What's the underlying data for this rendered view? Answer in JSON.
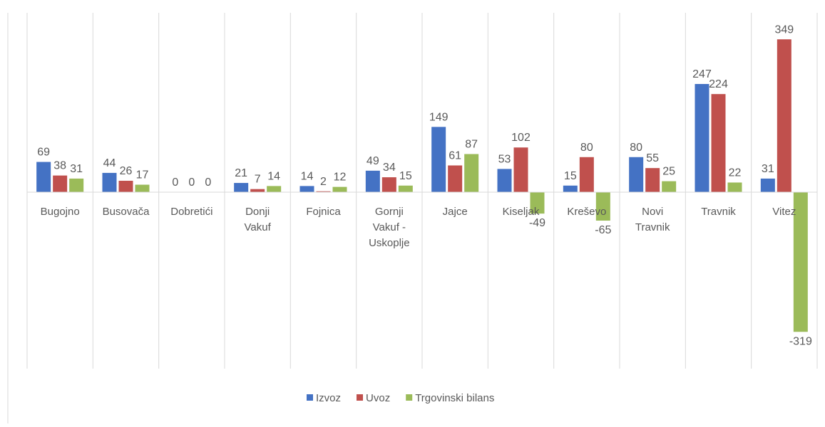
{
  "chart_data": {
    "type": "bar",
    "categories": [
      [
        "Bugojno"
      ],
      [
        "Busovača"
      ],
      [
        "Dobretići"
      ],
      [
        "Donji",
        "Vakuf"
      ],
      [
        "Fojnica"
      ],
      [
        "Gornji",
        "Vakuf -",
        "Uskoplje"
      ],
      [
        "Jajce"
      ],
      [
        "Kiseljak"
      ],
      [
        "Kreševo"
      ],
      [
        "Novi",
        "Travnik"
      ],
      [
        "Travnik"
      ],
      [
        "Vitez"
      ]
    ],
    "series": [
      {
        "name": "Izvoz",
        "color": "#4472c4",
        "values": [
          69,
          44,
          0,
          21,
          14,
          49,
          149,
          53,
          15,
          80,
          247,
          31
        ]
      },
      {
        "name": "Uvoz",
        "color": "#c0504d",
        "values": [
          38,
          26,
          0,
          7,
          2,
          34,
          61,
          102,
          80,
          55,
          224,
          349
        ]
      },
      {
        "name": "Trgovinski bilans",
        "color": "#9bbb59",
        "values": [
          31,
          17,
          0,
          14,
          12,
          15,
          87,
          -49,
          -65,
          25,
          22,
          -319
        ]
      }
    ],
    "ylim": [
      -400,
      360
    ],
    "grid": "vertical-category-separators",
    "legend": "bottom"
  }
}
